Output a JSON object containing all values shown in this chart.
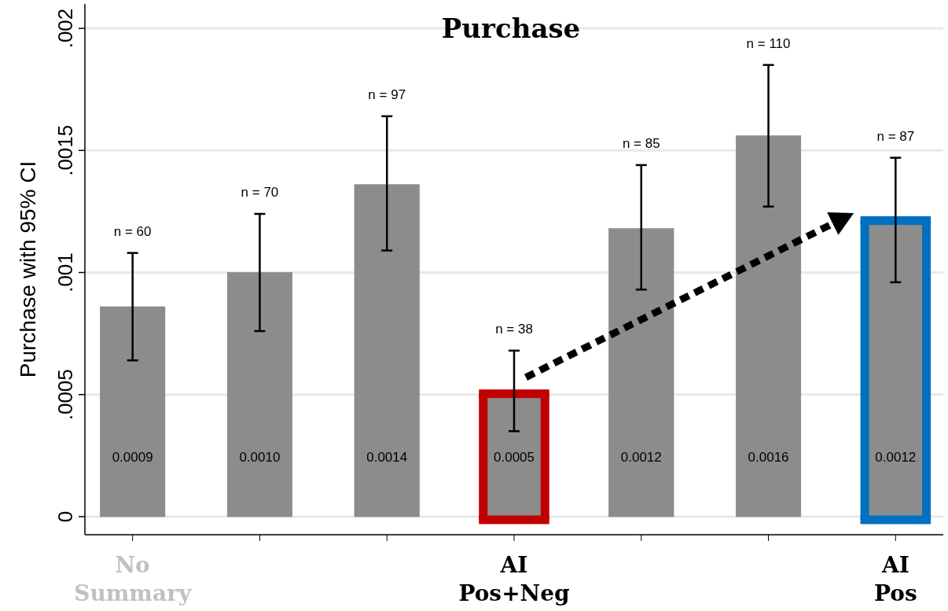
{
  "chart_data": {
    "type": "bar",
    "title": "Purchase",
    "ylabel": "Purchase with 95% CI",
    "categories": [
      "No Summary",
      null,
      null,
      "AI Pos+Neg",
      null,
      null,
      "AI Pos"
    ],
    "values": [
      0.00086,
      0.001,
      0.00136,
      0.00049,
      0.00118,
      0.00156,
      0.0012
    ],
    "color": "#8c8c8c",
    "value_labels": [
      "0.0009",
      "0.0010",
      "0.0014",
      "0.0005",
      "0.0012",
      "0.0016",
      "0.0012"
    ],
    "errors": [
      [
        0.00064,
        0.00108
      ],
      [
        0.00076,
        0.00124
      ],
      [
        0.00109,
        0.00164
      ],
      [
        0.00035,
        0.00068
      ],
      [
        0.00093,
        0.00144
      ],
      [
        0.00127,
        0.00185
      ],
      [
        0.00096,
        0.00147
      ]
    ],
    "ylim": [
      0,
      0.0021
    ],
    "yticks": [
      0,
      {
        "value": 0.0005,
        "label": ".0005"
      },
      {
        "value": 0.001,
        "label": ".001"
      },
      {
        "value": 0.0015,
        "label": ".0015"
      },
      {
        "value": 0.002,
        "label": ".002"
      }
    ],
    "grid": "y",
    "annotations": [
      "n = 60",
      "n = 70",
      "n = 97",
      "n = 38",
      "n = 85",
      "n = 110",
      "n = 87"
    ]
  }
}
